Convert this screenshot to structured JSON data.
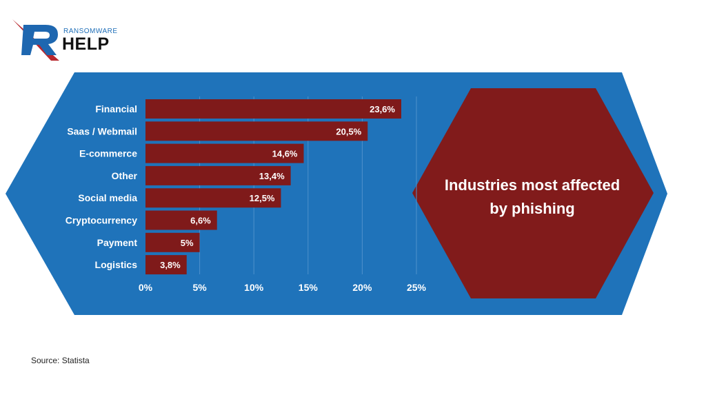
{
  "brand": {
    "top_text": "RANSOMWARE",
    "main_text": "HELP"
  },
  "source": "Source: Statista",
  "colors": {
    "background_panel": "#1f73ba",
    "bar": "#7f1a1a",
    "hexagon": "#811b1b",
    "text_light": "#ffffff",
    "grid": "#4f92cc"
  },
  "chart_data": {
    "type": "bar",
    "orientation": "horizontal",
    "title": "Industries most affected by phishing",
    "title_lines": [
      "Industries most affected",
      "by phishing"
    ],
    "categories": [
      "Financial",
      "Saas / Webmail",
      "E-commerce",
      "Other",
      "Social media",
      "Cryptocurrency",
      "Payment",
      "Logistics"
    ],
    "values": [
      23.6,
      20.5,
      14.6,
      13.4,
      12.5,
      6.6,
      5,
      3.8
    ],
    "value_labels": [
      "23,6%",
      "20,5%",
      "14,6%",
      "13,4%",
      "12,5%",
      "6,6%",
      "5%",
      "3,8%"
    ],
    "xticks": [
      0,
      5,
      10,
      15,
      20,
      25
    ],
    "xtick_labels": [
      "0%",
      "5%",
      "10%",
      "15%",
      "20%",
      "25%"
    ],
    "xlim": [
      0,
      25
    ],
    "grid": true
  }
}
